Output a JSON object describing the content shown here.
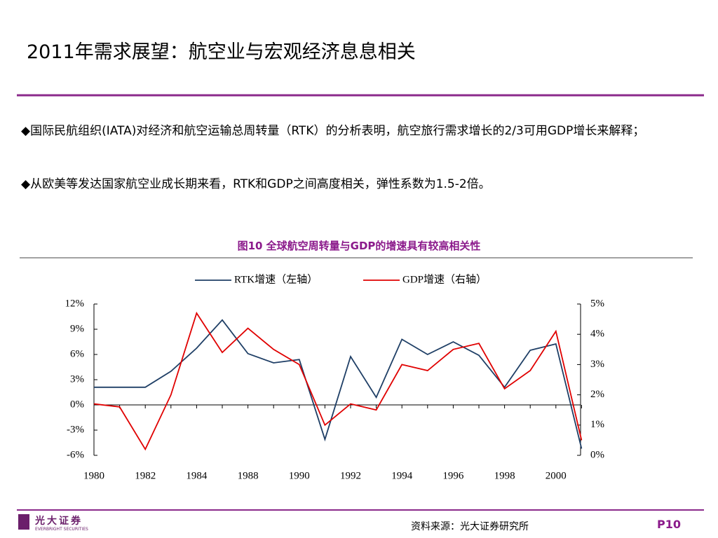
{
  "slide": {
    "title": "2011年需求展望：航空业与宏观经济息息相关",
    "bullets": [
      "◆国际民航组织(IATA)对经济和航空运输总周转量（RTK）的分析表明，航空旅行需求增长的2/3可用GDP增长来解释；",
      "◆从欧美等发达国家航空业成长期来看，RTK和GDP之间高度相关，弹性系数为1.5-2倍。"
    ],
    "source": "资料来源：光大证券研究所",
    "page": "P10",
    "logo": "光大证券",
    "logo_en": "EVERBRIGHT SECURITIES"
  },
  "chart_data": {
    "type": "line",
    "title": "图10  全球航空周转量与GDP的增速具有较高相关性",
    "categories": [
      "1980",
      null,
      "1982",
      null,
      "1984",
      null,
      "1988",
      null,
      "1990",
      null,
      "1992",
      null,
      "1994",
      null,
      "1996",
      null,
      "1998",
      null,
      "2000",
      null
    ],
    "series": [
      {
        "name": "RTK增速（左轴）",
        "color": "#1f3f66",
        "values": [
          2.1,
          2.1,
          2.1,
          4.0,
          6.75,
          10.1,
          6.1,
          5.0,
          5.4,
          -4.1,
          5.75,
          0.9,
          7.8,
          6.0,
          7.5,
          5.9,
          2.1,
          6.5,
          7.25,
          -5.2
        ]
      },
      {
        "name": "GDP增速（右轴）",
        "color": "#e00000",
        "axis": "y2",
        "values": [
          1.7,
          1.6,
          0.2,
          2.0,
          4.7,
          3.4,
          4.2,
          3.5,
          3.0,
          1.0,
          1.7,
          1.5,
          3.0,
          2.8,
          3.5,
          3.7,
          2.2,
          2.8,
          4.1,
          0.5
        ]
      }
    ],
    "ylim": [
      -6,
      12
    ],
    "yticks": [
      {
        "value": -6,
        "label": "-6%"
      },
      {
        "value": -3,
        "label": "-3%"
      },
      {
        "value": 0,
        "label": "0%"
      },
      {
        "value": 3,
        "label": "3%"
      },
      {
        "value": 6,
        "label": "6%"
      },
      {
        "value": 9,
        "label": "9%"
      },
      {
        "value": 12,
        "label": "12%"
      }
    ],
    "y2lim": [
      0,
      5
    ],
    "y2ticks": [
      {
        "value": 0,
        "label": "0%"
      },
      {
        "value": 1,
        "label": "1%"
      },
      {
        "value": 2,
        "label": "2%"
      },
      {
        "value": 3,
        "label": "3%"
      },
      {
        "value": 4,
        "label": "4%"
      },
      {
        "value": 5,
        "label": "5%"
      }
    ],
    "legend": "top"
  }
}
